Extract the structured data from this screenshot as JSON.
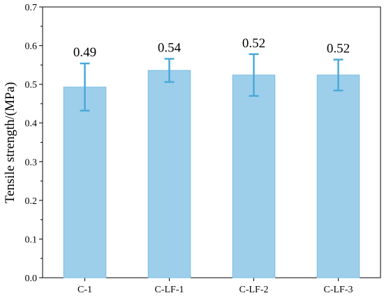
{
  "chart_data": {
    "type": "bar",
    "categories": [
      "C-1",
      "C-LF-1",
      "C-LF-2",
      "C-LF-3"
    ],
    "values": [
      0.493,
      0.536,
      0.524,
      0.524
    ],
    "data_labels": [
      "0.49",
      "0.54",
      "0.52",
      "0.52"
    ],
    "error_bars": [
      {
        "low": 0.432,
        "high": 0.554
      },
      {
        "low": 0.506,
        "high": 0.566
      },
      {
        "low": 0.47,
        "high": 0.578
      },
      {
        "low": 0.484,
        "high": 0.564
      }
    ],
    "xlabel": "",
    "ylabel": "Tensile strength/(MPa)",
    "ylim": [
      0,
      0.7
    ],
    "yticks": [
      "0.0",
      "0.1",
      "0.2",
      "0.3",
      "0.4",
      "0.5",
      "0.6",
      "0.7"
    ],
    "grid": false,
    "colors": {
      "bar_fill": "#9dcfeb",
      "bar_stroke": "#79bde4",
      "error_bar": "#4aa9d9",
      "axis": "#000000"
    }
  }
}
